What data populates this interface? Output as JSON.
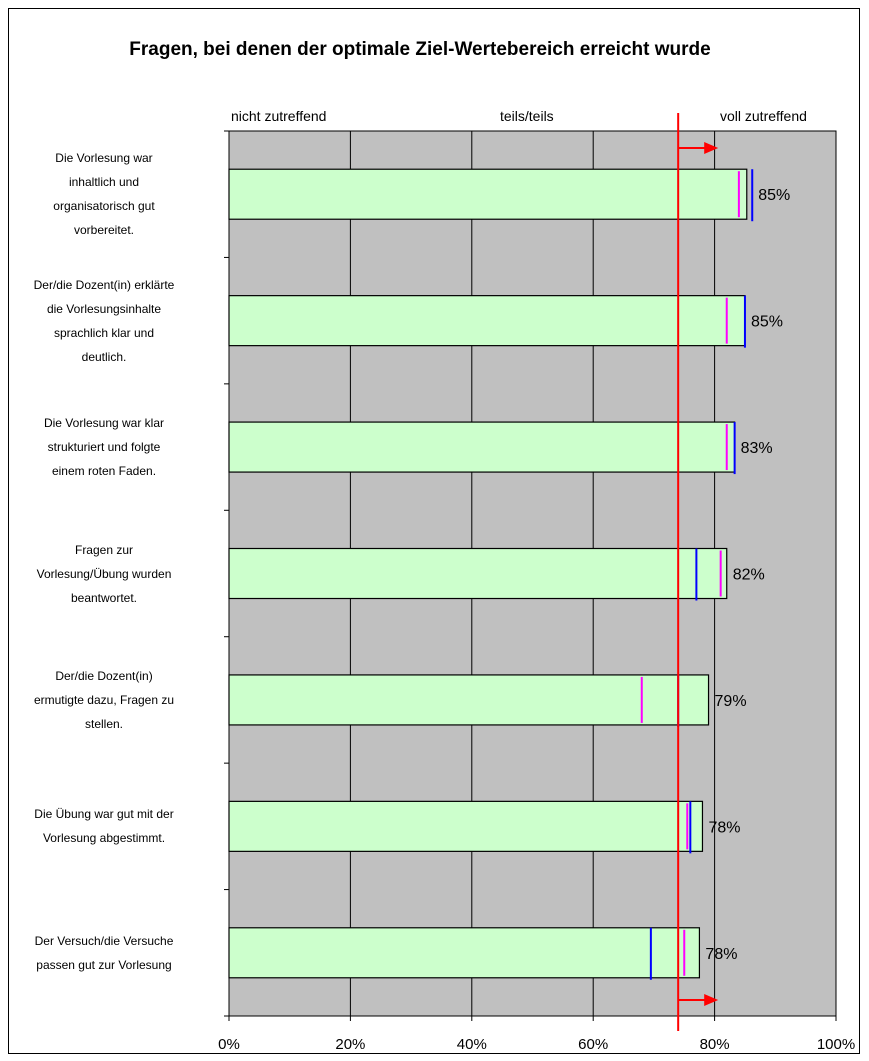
{
  "chart_data": {
    "type": "bar",
    "orientation": "horizontal",
    "title": "Fragen, bei denen der optimale Ziel-Wertebereich erreicht wurde",
    "scale_labels": [
      "nicht zutreffend",
      "teils/teils",
      "voll zutreffend"
    ],
    "xlim": [
      0,
      100
    ],
    "x_ticks": [
      "0%",
      "20%",
      "40%",
      "60%",
      "80%",
      "100%"
    ],
    "grid": true,
    "target_threshold": 74,
    "categories": [
      "Die Vorlesung war inhaltlich und organisatorisch gut vorbereitet.",
      "Der/die Dozent(in) erklärte die Vorlesungsinhalte sprachlich klar und deutlich.",
      "Die Vorlesung war klar strukturiert und folgte einem roten Faden.",
      "Fragen zur Vorlesung/Übung wurden beantwortet.",
      "Der/die Dozent(in) ermutigte dazu, Fragen zu stellen.",
      "Die Übung war gut mit der Vorlesung abgestimmt.",
      "Der Versuch/die Versuche passen gut zur Vorlesung"
    ],
    "category_lines": [
      [
        "Die Vorlesung war",
        "inhaltlich und",
        "organisatorisch gut",
        "vorbereitet."
      ],
      [
        "Der/die Dozent(in) erklärte",
        "die Vorlesungsinhalte",
        "sprachlich klar und",
        "deutlich."
      ],
      [
        "Die Vorlesung war klar",
        "strukturiert und folgte",
        "einem roten Faden."
      ],
      [
        "Fragen zur",
        "Vorlesung/Übung wurden",
        "beantwortet."
      ],
      [
        "Der/die Dozent(in)",
        "ermutigte dazu, Fragen zu",
        "stellen."
      ],
      [
        "Die Übung war gut mit der",
        "Vorlesung abgestimmt."
      ],
      [
        "Der Versuch/die Versuche",
        "passen gut zur Vorlesung"
      ]
    ],
    "values": [
      85,
      85,
      83,
      82,
      79,
      78,
      78
    ],
    "value_labels": [
      "85%",
      "85%",
      "83%",
      "82%",
      "79%",
      "78%",
      "78%"
    ],
    "bar_lengths": [
      85.3,
      85.0,
      83.3,
      82.0,
      79.0,
      78.0,
      77.5
    ],
    "marker_blue": [
      86.2,
      85.0,
      83.3,
      77.0,
      74.0,
      76.0,
      69.5
    ],
    "marker_magenta": [
      84.0,
      82.0,
      82.0,
      81.0,
      68.0,
      75.5,
      75.0
    ],
    "colors": {
      "plot_background": "#c0c0c0",
      "bar_fill": "#ccffcc",
      "bar_border": "#000000",
      "threshold": "#ff0000",
      "marker_blue": "#0000ff",
      "marker_magenta": "#ff00ff",
      "grid": "#000000"
    }
  }
}
